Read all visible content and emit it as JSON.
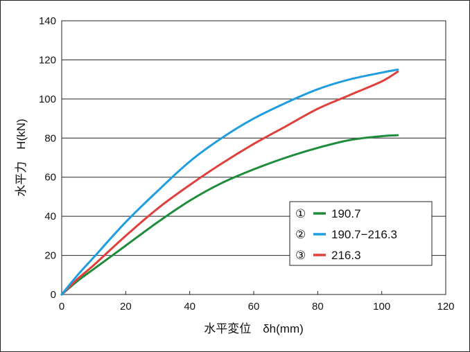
{
  "chart_data": {
    "type": "line",
    "xlabel": "水平変位　δh(mm)",
    "ylabel": "水平力　H(kN)",
    "xlim": [
      0,
      120
    ],
    "ylim": [
      0,
      140
    ],
    "xticks": [
      0,
      20,
      40,
      60,
      80,
      100,
      120
    ],
    "yticks": [
      0,
      20,
      40,
      60,
      80,
      100,
      120,
      140
    ],
    "grid": "horizontal",
    "legend_position": "bottom-right",
    "series": [
      {
        "name": "190.7",
        "marker": "①",
        "color": "#1e8c3a",
        "x": [
          0,
          5,
          10,
          20,
          30,
          40,
          50,
          60,
          70,
          80,
          90,
          100,
          105
        ],
        "y": [
          0,
          7,
          13,
          25,
          37,
          48,
          57,
          64,
          70,
          75,
          79,
          81,
          81.5
        ]
      },
      {
        "name": "190.7−216.3",
        "marker": "②",
        "color": "#1f9de0",
        "x": [
          0,
          5,
          10,
          20,
          30,
          40,
          50,
          60,
          70,
          80,
          90,
          100,
          105
        ],
        "y": [
          0,
          10,
          19,
          37,
          53,
          68,
          80,
          90,
          98,
          105,
          110,
          113.5,
          115
        ]
      },
      {
        "name": "216.3",
        "marker": "③",
        "color": "#e0403c",
        "x": [
          0,
          5,
          10,
          20,
          30,
          40,
          50,
          60,
          70,
          80,
          90,
          100,
          105
        ],
        "y": [
          0,
          8,
          15,
          30,
          44,
          56,
          67,
          77,
          86,
          95,
          102,
          109,
          114
        ]
      }
    ]
  }
}
